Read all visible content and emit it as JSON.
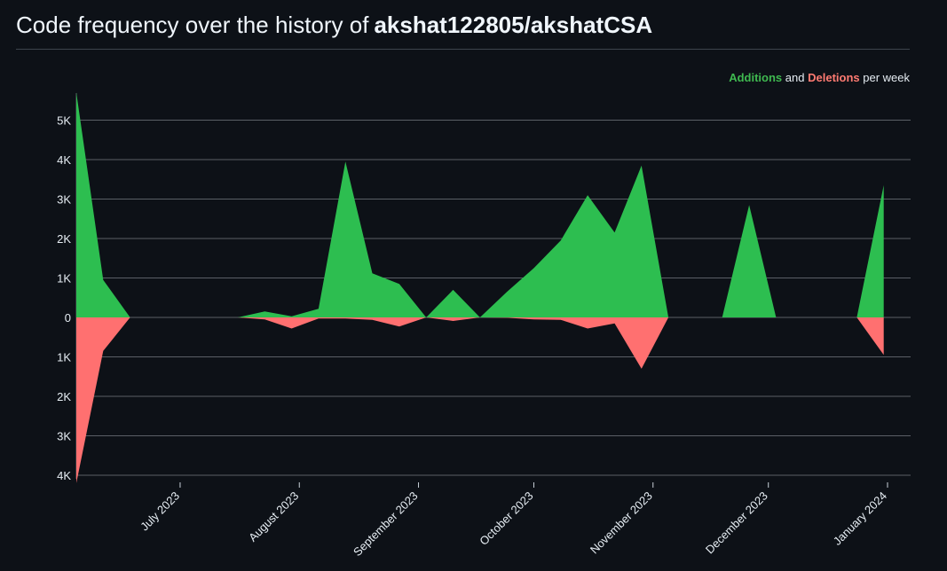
{
  "header": {
    "title_prefix": "Code frequency over the history of",
    "repo": "akshat122805/akshatCSA"
  },
  "legend": {
    "additions_label": "Additions",
    "joiner": "and",
    "deletions_label": "Deletions",
    "suffix": "per week"
  },
  "colors": {
    "additions": "#2dbe50",
    "deletions": "#ff7070",
    "grid": "#5a5f66",
    "background": "#0d1117"
  },
  "chart_data": {
    "type": "area",
    "title": "Code frequency over the history of akshat122805/akshatCSA",
    "x": [
      "2023-06-04",
      "2023-06-11",
      "2023-06-18",
      "2023-06-25",
      "2023-07-02",
      "2023-07-09",
      "2023-07-16",
      "2023-07-23",
      "2023-07-30",
      "2023-08-06",
      "2023-08-13",
      "2023-08-20",
      "2023-08-27",
      "2023-09-03",
      "2023-09-10",
      "2023-09-17",
      "2023-09-24",
      "2023-10-01",
      "2023-10-08",
      "2023-10-15",
      "2023-10-22",
      "2023-10-29",
      "2023-11-05",
      "2023-11-12",
      "2023-11-19",
      "2023-11-26",
      "2023-12-03",
      "2023-12-10",
      "2023-12-17",
      "2023-12-24",
      "2023-12-31",
      "2024-01-07"
    ],
    "series": [
      {
        "name": "Additions",
        "values": [
          5700,
          950,
          0,
          0,
          0,
          0,
          0,
          150,
          30,
          220,
          3950,
          1120,
          850,
          0,
          700,
          0,
          650,
          1250,
          1950,
          3100,
          2150,
          3850,
          0,
          0,
          0,
          2850,
          0,
          0,
          0,
          0,
          3350,
          null
        ]
      },
      {
        "name": "Deletions",
        "values": [
          -4200,
          -850,
          0,
          0,
          0,
          0,
          0,
          -50,
          -280,
          -30,
          -30,
          -60,
          -230,
          0,
          -90,
          0,
          -10,
          -50,
          -60,
          -280,
          -150,
          -1300,
          0,
          0,
          0,
          0,
          0,
          0,
          0,
          0,
          -950,
          null
        ]
      }
    ],
    "x_tick_labels": [
      "July 2023",
      "August 2023",
      "September 2023",
      "October 2023",
      "November 2023",
      "December 2023",
      "January 2024"
    ],
    "x_tick_dates": [
      "2023-07-01",
      "2023-08-01",
      "2023-09-01",
      "2023-10-01",
      "2023-11-01",
      "2023-12-01",
      "2024-01-01"
    ],
    "x_range": [
      "2023-06-04",
      "2024-01-07"
    ],
    "y_ticks": [
      5000,
      4000,
      3000,
      2000,
      1000,
      0,
      -1000,
      -2000,
      -3000,
      -4000
    ],
    "y_tick_labels": [
      "5K",
      "4K",
      "3K",
      "2K",
      "1K",
      "0",
      "1K",
      "2K",
      "3K",
      "4K"
    ],
    "ylim": [
      -4200,
      5700
    ],
    "grid": true,
    "legend_position": "top-right"
  }
}
